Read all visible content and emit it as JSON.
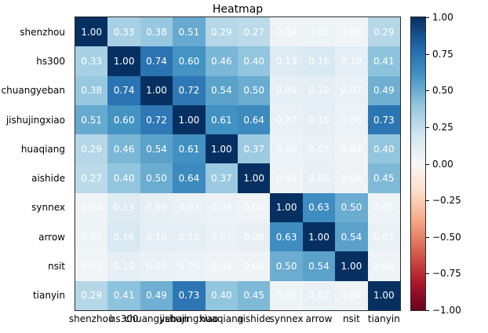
{
  "title": "Heatmap",
  "chart_data": {
    "type": "heatmap",
    "title": "Heatmap",
    "categories": [
      "shenzhou",
      "hs300",
      "chuangyeban",
      "jishujingxiao",
      "huaqiang",
      "aishide",
      "synnex",
      "arrow",
      "nsit",
      "tianyin"
    ],
    "matrix": [
      [
        1.0,
        0.33,
        0.38,
        0.51,
        0.29,
        0.27,
        0.04,
        0.05,
        0.03,
        0.29
      ],
      [
        0.33,
        1.0,
        0.74,
        0.6,
        0.46,
        0.4,
        0.13,
        0.16,
        0.1,
        0.41
      ],
      [
        0.38,
        0.74,
        1.0,
        0.72,
        0.54,
        0.5,
        0.09,
        0.1,
        0.07,
        0.49
      ],
      [
        0.51,
        0.6,
        0.72,
        1.0,
        0.61,
        0.64,
        0.07,
        0.1,
        0.06,
        0.73
      ],
      [
        0.29,
        0.46,
        0.54,
        0.61,
        1.0,
        0.37,
        0.06,
        0.07,
        0.04,
        0.4
      ],
      [
        0.27,
        0.4,
        0.5,
        0.64,
        0.37,
        1.0,
        0.04,
        0.08,
        0.04,
        0.45
      ],
      [
        0.04,
        0.13,
        0.09,
        0.07,
        0.06,
        0.04,
        1.0,
        0.63,
        0.5,
        0.05
      ],
      [
        0.05,
        0.16,
        0.1,
        0.1,
        0.07,
        0.08,
        0.63,
        1.0,
        0.54,
        0.07
      ],
      [
        0.03,
        0.1,
        0.07,
        0.06,
        0.04,
        0.04,
        0.5,
        0.54,
        1.0,
        0.04
      ],
      [
        0.29,
        0.41,
        0.49,
        0.73,
        0.4,
        0.45,
        0.05,
        0.07,
        0.04,
        1.0
      ]
    ],
    "vmin": -1.0,
    "vmax": 1.0,
    "colormap": "RdBu",
    "colormap_anchors": [
      "#67001f",
      "#b2182b",
      "#d6604d",
      "#f4a582",
      "#fddbc7",
      "#f7f7f7",
      "#d1e5f0",
      "#92c5de",
      "#4393c3",
      "#2166ac",
      "#053061"
    ],
    "colorbar_ticks": [
      1.0,
      0.75,
      0.5,
      0.25,
      0.0,
      -0.25,
      -0.5,
      -0.75,
      -1.0
    ],
    "cell_text_color": "#ffffff",
    "legend_position": "right",
    "grid": false
  }
}
